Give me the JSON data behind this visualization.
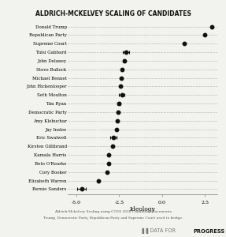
{
  "title": "ALDRICH-MCKELVEY SCALING OF CANDIDATES",
  "candidates": [
    "Donald Trump",
    "Republican Party",
    "Supreme Court",
    "Tulsi Gabbard",
    "John Delaney",
    "Steve Bullock",
    "Michael Bennet",
    "John Hickenlooper",
    "Seth Moulton",
    "Tim Ryan",
    "Democratic Party",
    "Amy Klobuchar",
    "Jay Inslee",
    "Eric Swalwell",
    "Kirsten Gillibrand",
    "Kamala Harris",
    "Beto O'Rourke",
    "Cory Booker",
    "Elizabeth Warren",
    "Bernie Sanders"
  ],
  "values": [
    2.9,
    2.5,
    1.3,
    -2.1,
    -2.2,
    -2.35,
    -2.4,
    -2.45,
    -2.35,
    -2.5,
    -2.55,
    -2.6,
    -2.65,
    -2.85,
    -2.9,
    -3.1,
    -3.1,
    -3.2,
    -3.7,
    -4.7
  ],
  "xerr_low": [
    0.0,
    0.0,
    0.0,
    0.18,
    0.07,
    0.0,
    0.0,
    0.0,
    0.15,
    0.09,
    0.0,
    0.0,
    0.0,
    0.18,
    0.0,
    0.0,
    0.0,
    0.0,
    0.0,
    0.25
  ],
  "xerr_high": [
    0.0,
    0.0,
    0.0,
    0.18,
    0.07,
    0.0,
    0.0,
    0.0,
    0.15,
    0.09,
    0.0,
    0.0,
    0.0,
    0.18,
    0.0,
    0.0,
    0.0,
    0.0,
    0.0,
    0.25
  ],
  "xlim": [
    -5.5,
    3.2
  ],
  "xticks": [
    -5.0,
    -2.5,
    0.0,
    2.5
  ],
  "xtick_labels": [
    "-5.0",
    "-2.5",
    "0.0",
    "2.5"
  ],
  "xlabel": "Ideology",
  "subtitle_line1": "Aldrich-Mckelvey Scaling using CCES 2018 Candidate Placements",
  "subtitle_line2": "Trump, Democratic Party, Republican Party and Supreme Court used to bridge.",
  "background_color": "#f2f2ee",
  "dot_color": "#111111",
  "grid_color": "#bbbbbb",
  "spine_color": "#888888"
}
